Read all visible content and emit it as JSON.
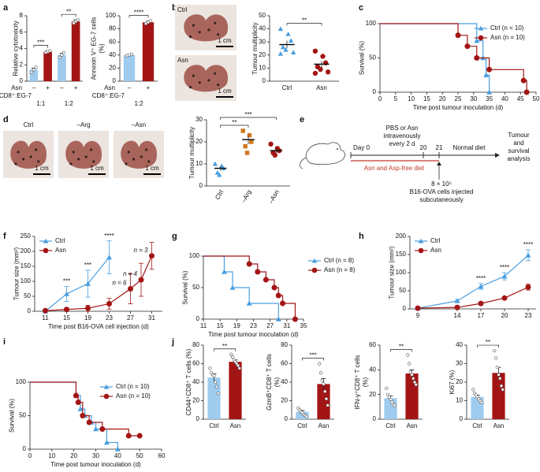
{
  "chart_data": [
    {
      "panel": "a",
      "type": "bar",
      "ylabel": "Relative cytotoxicity",
      "ylim": [
        0,
        8
      ],
      "yticks": [
        0,
        2,
        4,
        6,
        8
      ],
      "categories": [
        "–",
        "+",
        "–",
        "+"
      ],
      "colors": [
        "#9ecbee",
        "#a31515",
        "#9ecbee",
        "#a31515"
      ],
      "values": [
        1.4,
        3.6,
        3.2,
        7.3
      ],
      "errors": [
        0.2,
        0.1,
        0.2,
        0.2
      ],
      "points": [
        [
          1.1,
          1.4,
          1.7
        ],
        [
          3.5,
          3.6,
          3.7
        ],
        [
          2.9,
          3.2,
          3.5
        ],
        [
          7.1,
          7.3,
          7.5
        ]
      ],
      "row_labels": [
        "Asn",
        "CD8⁺:EG-7"
      ],
      "groups": [
        "1:1",
        "1:2"
      ],
      "significance": [
        "***",
        "**"
      ]
    },
    {
      "type": "bar",
      "ylabel": [
        "Annexin V⁺ EG-7 cells",
        "(%)"
      ],
      "ylim": [
        0,
        100
      ],
      "yticks": [
        0,
        20,
        40,
        60,
        80,
        100
      ],
      "categories": [
        "–",
        "+"
      ],
      "colors": [
        "#9ecbee",
        "#a31515"
      ],
      "values": [
        40,
        90
      ],
      "errors": [
        1,
        2
      ],
      "points": [
        [
          39,
          40,
          41
        ],
        [
          88,
          90,
          92
        ]
      ],
      "row_labels": [
        "Asn",
        "CD8⁺:EG-7"
      ],
      "groups": [
        "1:2"
      ],
      "significance": [
        "****"
      ]
    },
    {
      "panel": "b",
      "type": "strip",
      "ylabel": "Tumour multiplicity",
      "ylim": [
        0,
        50
      ],
      "yticks": [
        0,
        10,
        20,
        30,
        40,
        50
      ],
      "categories": [
        "Ctrl",
        "Asn"
      ],
      "colors": [
        "#4a9fe0",
        "#a31515"
      ],
      "markers": [
        "triangle",
        "circle"
      ],
      "points": [
        [
          40,
          36,
          31,
          26,
          24,
          22,
          21
        ],
        [
          23,
          19,
          14,
          11,
          9,
          7,
          6
        ]
      ],
      "means": [
        28,
        13
      ],
      "errors": [
        3,
        2.5
      ],
      "significance": [
        "**"
      ],
      "photos": [
        {
          "label": "Ctrl",
          "scale": "1 cm"
        },
        {
          "label": "Asn",
          "scale": "1 cm"
        }
      ]
    },
    {
      "panel": "c",
      "type": "survival",
      "xlabel": "Time post tumour inoculation (d)",
      "ylabel": "Survival (%)",
      "xlim": [
        0,
        50
      ],
      "xticks": [
        0,
        5,
        10,
        15,
        20,
        25,
        30,
        35,
        40,
        45,
        50
      ],
      "ylim": [
        0,
        100
      ],
      "yticks": [
        0,
        50,
        100
      ],
      "legend": "upper right",
      "series": [
        {
          "name": "Ctrl (n = 10)",
          "color": "#4a9fe0",
          "marker": "triangle",
          "x": [
            0,
            31,
            33,
            34,
            35
          ],
          "values": [
            100,
            75,
            50,
            25,
            0
          ]
        },
        {
          "name": "Asn (n = 10)",
          "color": "#a31515",
          "marker": "circle",
          "x": [
            0,
            25,
            28,
            31,
            35,
            46,
            47
          ],
          "values": [
            100,
            83,
            67,
            50,
            33,
            17,
            0
          ]
        }
      ]
    },
    {
      "panel": "d",
      "type": "strip",
      "ylabel": "Tumour multiplicity",
      "ylim": [
        0,
        30
      ],
      "yticks": [
        0,
        10,
        20,
        30
      ],
      "categories": [
        "Ctrl",
        "–Arg",
        "–Asn"
      ],
      "colors": [
        "#4a9fe0",
        "#d2771e",
        "#a31515"
      ],
      "markers": [
        "triangle",
        "square",
        "circle"
      ],
      "points": [
        [
          10,
          9,
          8,
          6,
          5
        ],
        [
          25,
          23,
          20,
          18,
          15
        ],
        [
          19,
          17,
          16,
          15,
          14
        ]
      ],
      "means": [
        8,
        21,
        16
      ],
      "errors": [
        1,
        2,
        1
      ],
      "significance": [
        "**",
        "***"
      ],
      "photos": [
        {
          "label": "Ctrl",
          "scale": "1 cm"
        },
        {
          "label": "–Arg",
          "scale": "1 cm"
        },
        {
          "label": "–Asn",
          "scale": "1 cm"
        }
      ]
    },
    {
      "panel": "f",
      "type": "line",
      "xlabel": "Time post B16-OVA cell injection (d)",
      "ylabel": "Tumour size (mm²)",
      "xlim": [
        9,
        33
      ],
      "xticks": [
        11,
        15,
        19,
        23,
        27,
        31
      ],
      "ylim": [
        0,
        250
      ],
      "yticks": [
        0,
        50,
        100,
        150,
        200,
        250
      ],
      "legend": "upper left",
      "series": [
        {
          "name": "Ctrl",
          "color": "#4a9fe0",
          "marker": "triangle",
          "x": [
            11,
            15,
            19,
            23
          ],
          "values": [
            0,
            58,
            92,
            180
          ],
          "errors": [
            0,
            25,
            45,
            55
          ]
        },
        {
          "name": "Asn",
          "color": "#a31515",
          "marker": "circle",
          "x": [
            11,
            15,
            19,
            23,
            27,
            29,
            31
          ],
          "values": [
            2,
            6,
            10,
            25,
            75,
            105,
            185
          ],
          "errors": [
            1,
            5,
            10,
            18,
            50,
            55,
            45
          ],
          "point_labels": [
            null,
            null,
            null,
            null,
            "n = 6",
            "n = 4",
            "n = 3"
          ]
        }
      ],
      "annotations": [
        {
          "x": 15,
          "text": "***"
        },
        {
          "x": 19,
          "text": "***"
        },
        {
          "x": 23,
          "text": "****"
        }
      ]
    },
    {
      "panel": "g",
      "type": "survival",
      "xlabel": "Time post tumour inoculation (d)",
      "ylabel": "Survival (%)",
      "xlim": [
        11,
        35
      ],
      "xticks": [
        11,
        15,
        19,
        23,
        27,
        31,
        35
      ],
      "ylim": [
        0,
        100
      ],
      "yticks": [
        0,
        50,
        100
      ],
      "legend": "outside right",
      "series": [
        {
          "name": "Ctrl (n = 8)",
          "color": "#4a9fe0",
          "marker": "triangle",
          "x": [
            11,
            16,
            18,
            22,
            29
          ],
          "values": [
            100,
            75,
            50,
            25,
            0
          ]
        },
        {
          "name": "Asn (n = 8)",
          "color": "#a31515",
          "marker": "circle",
          "x": [
            11,
            22,
            24,
            26,
            28,
            29,
            30,
            33
          ],
          "values": [
            100,
            87.5,
            75,
            62.5,
            50,
            37.5,
            25,
            0
          ]
        }
      ]
    },
    {
      "panel": "h",
      "type": "line",
      "ylabel": "Tumour size (mm²)",
      "xlim": [
        8,
        24
      ],
      "xticks": [
        9,
        14,
        17,
        20,
        23
      ],
      "ylim": [
        0,
        200
      ],
      "yticks": [
        0,
        50,
        100,
        150,
        200
      ],
      "legend": "upper left",
      "series": [
        {
          "name": "Ctrl",
          "color": "#4a9fe0",
          "marker": "triangle",
          "x": [
            9,
            14,
            17,
            20,
            23
          ],
          "values": [
            2,
            22,
            62,
            90,
            148
          ],
          "errors": [
            1,
            4,
            8,
            10,
            15
          ]
        },
        {
          "name": "Asn",
          "color": "#a31515",
          "marker": "circle",
          "x": [
            9,
            14,
            17,
            20,
            23
          ],
          "values": [
            2,
            4,
            15,
            30,
            60
          ],
          "errors": [
            1,
            2,
            3,
            4,
            8
          ]
        }
      ],
      "annotations": [
        {
          "x": 17,
          "text": "****"
        },
        {
          "x": 20,
          "text": "****"
        },
        {
          "x": 23,
          "text": "****"
        }
      ]
    },
    {
      "panel": "i",
      "type": "survival",
      "xlabel": "Time post tumour inoculation (d)",
      "ylabel": "Survival (%)",
      "xlim": [
        0,
        60
      ],
      "xticks": [
        0,
        10,
        20,
        30,
        40,
        50,
        60
      ],
      "ylim": [
        0,
        100
      ],
      "yticks": [
        0,
        50,
        100
      ],
      "legend": "upper right",
      "series": [
        {
          "name": "Ctrl (n = 10)",
          "color": "#4a9fe0",
          "marker": "triangle",
          "x": [
            0,
            21,
            23,
            25,
            28,
            30,
            35,
            40
          ],
          "values": [
            100,
            80,
            60,
            50,
            40,
            30,
            10,
            0
          ]
        },
        {
          "name": "Asn (n = 10)",
          "color": "#a31515",
          "marker": "circle",
          "x": [
            0,
            21,
            22,
            24,
            27,
            33,
            45,
            50
          ],
          "values": [
            100,
            80,
            70,
            50,
            40,
            30,
            20,
            20
          ]
        }
      ]
    },
    {
      "panel": "j",
      "type": "bar",
      "ylabel": "CD44⁺CD8⁺ T cells (%)",
      "ylim": [
        0,
        80
      ],
      "yticks": [
        0,
        20,
        40,
        60,
        80
      ],
      "categories": [
        "Ctrl",
        "Asn"
      ],
      "colors": [
        "#9ecbee",
        "#a31515"
      ],
      "values": [
        45,
        62
      ],
      "errors": [
        4,
        2
      ],
      "points": [
        [
          55,
          50,
          48,
          47,
          40,
          35,
          28
        ],
        [
          70,
          67,
          64,
          62,
          60,
          58,
          55
        ]
      ],
      "significance": [
        "**"
      ]
    },
    {
      "type": "bar",
      "ylabel": [
        "GzmB⁺CD8⁺ T cells",
        "(%)"
      ],
      "ylim": [
        0,
        80
      ],
      "yticks": [
        0,
        20,
        40,
        60,
        80
      ],
      "categories": [
        "Ctrl",
        "Asn"
      ],
      "colors": [
        "#9ecbee",
        "#a31515"
      ],
      "values": [
        8,
        38
      ],
      "errors": [
        1.5,
        6
      ],
      "points": [
        [
          12,
          10,
          8,
          7,
          5,
          4,
          3
        ],
        [
          60,
          50,
          42,
          38,
          30,
          22,
          15
        ]
      ],
      "significance": [
        "***"
      ]
    },
    {
      "type": "bar",
      "ylabel": [
        "IFN-γ⁺CD8⁺ T cells",
        "(%)"
      ],
      "ylim": [
        0,
        60
      ],
      "yticks": [
        0,
        20,
        40,
        60
      ],
      "categories": [
        "Ctrl",
        "Asn"
      ],
      "colors": [
        "#9ecbee",
        "#a31515"
      ],
      "values": [
        17,
        37
      ],
      "errors": [
        2,
        3
      ],
      "points": [
        [
          25,
          20,
          18,
          16,
          14,
          12,
          11
        ],
        [
          52,
          45,
          38,
          36,
          33,
          30,
          28
        ]
      ],
      "significance": [
        "**"
      ]
    },
    {
      "type": "bar",
      "ylabel": "Ki67 (%)",
      "ylim": [
        0,
        40
      ],
      "yticks": [
        0,
        10,
        20,
        30,
        40
      ],
      "categories": [
        "Ctrl",
        "Asn"
      ],
      "colors": [
        "#9ecbee",
        "#a31515"
      ],
      "values": [
        12,
        25
      ],
      "errors": [
        1,
        3
      ],
      "points": [
        [
          16,
          14,
          13,
          12,
          11,
          10,
          9
        ],
        [
          37,
          33,
          28,
          24,
          22,
          18,
          16
        ]
      ],
      "significance": [
        "**"
      ]
    }
  ],
  "diagram": {
    "panel": "e",
    "day0": "Day 0",
    "treatment": [
      "PBS or Asn",
      "intravenously",
      "every 2 d"
    ],
    "day20": "20",
    "day21": "21",
    "normal_diet": "Normal diet",
    "analysis": [
      "Tumour",
      "and",
      "survival",
      "analysis"
    ],
    "diet": "Asn and Asp-free diet",
    "injection": [
      "8 × 10⁵",
      "B16-OVA cells injected",
      "subcutaneously"
    ]
  }
}
